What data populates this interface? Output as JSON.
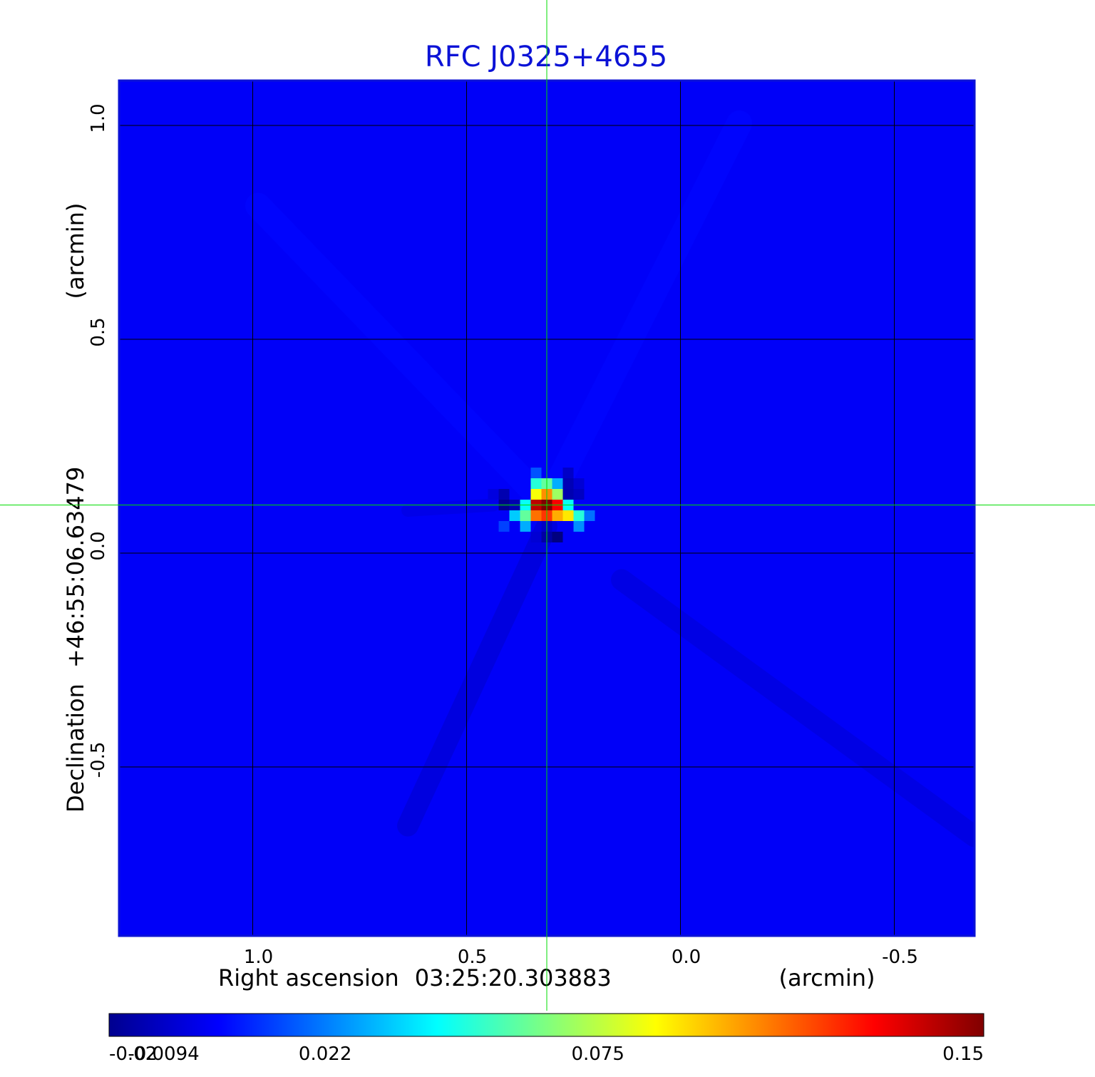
{
  "chart_data": {
    "type": "heatmap",
    "title": "RFC J0325+4655",
    "xlabel": "Right ascension",
    "xlabel_center": "03:25:20.303883",
    "xlabel_unit": "(arcmin)",
    "ylabel": "Declination",
    "ylabel_center": "+46:55:06.63479",
    "ylabel_unit": "(arcmin)",
    "x_ticks": [
      1.0,
      0.5,
      0.0,
      -0.5
    ],
    "x_tick_labels": [
      "1.0",
      "0.5",
      "0.0",
      "-0.5"
    ],
    "y_ticks": [
      1.0,
      0.5,
      0.0,
      -0.5
    ],
    "y_tick_labels": [
      "1.0",
      "0.5",
      "0.0",
      "-0.5"
    ],
    "xlim": [
      1.3125,
      -0.6875
    ],
    "ylim": [
      -0.895,
      1.105
    ],
    "grid": true,
    "crosshair": {
      "x": 0.3125,
      "y": 0.1125,
      "color": "#00dd00"
    },
    "colorbar": {
      "colormap": "jet",
      "min": -0.02,
      "max": 0.15,
      "ticks": [
        -0.02,
        -0.0094,
        0.022,
        0.075,
        0.15
      ],
      "tick_labels": [
        "-0.02",
        "-0.0094",
        "0.022",
        "0.075",
        "0.15"
      ]
    },
    "background_value": 0.0,
    "pixel_size_arcmin": 0.025,
    "features": [
      {
        "kind": "peak",
        "x": 0.3125,
        "y": 0.1125,
        "value": 0.15
      },
      {
        "kind": "pixels",
        "values_at": [
          {
            "x": 0.3375,
            "y": 0.1125,
            "value": 0.14
          },
          {
            "x": 0.2875,
            "y": 0.1125,
            "value": 0.13
          },
          {
            "x": 0.3125,
            "y": 0.0875,
            "value": 0.12
          },
          {
            "x": 0.3375,
            "y": 0.0875,
            "value": 0.11
          },
          {
            "x": 0.3125,
            "y": 0.1375,
            "value": 0.105
          },
          {
            "x": 0.2875,
            "y": 0.0875,
            "value": 0.1
          },
          {
            "x": 0.2625,
            "y": 0.0875,
            "value": 0.09
          },
          {
            "x": 0.3375,
            "y": 0.1375,
            "value": 0.085
          },
          {
            "x": 0.2875,
            "y": 0.1375,
            "value": 0.07
          },
          {
            "x": 0.3625,
            "y": 0.0875,
            "value": 0.06
          },
          {
            "x": 0.3125,
            "y": 0.1625,
            "value": 0.06
          },
          {
            "x": 0.3375,
            "y": 0.1625,
            "value": 0.05
          },
          {
            "x": 0.2375,
            "y": 0.0875,
            "value": 0.05
          },
          {
            "x": 0.2625,
            "y": 0.1125,
            "value": 0.045
          },
          {
            "x": 0.3625,
            "y": 0.1125,
            "value": 0.045
          },
          {
            "x": 0.3875,
            "y": 0.0875,
            "value": 0.035
          },
          {
            "x": 0.3625,
            "y": 0.0625,
            "value": 0.03
          },
          {
            "x": 0.2875,
            "y": 0.1625,
            "value": 0.03
          },
          {
            "x": 0.2375,
            "y": 0.0625,
            "value": 0.025
          },
          {
            "x": 0.2125,
            "y": 0.0875,
            "value": 0.02
          },
          {
            "x": 0.4125,
            "y": 0.0625,
            "value": 0.012
          },
          {
            "x": 0.3375,
            "y": 0.1875,
            "value": 0.015
          },
          {
            "x": 0.4125,
            "y": 0.1125,
            "value": -0.018
          },
          {
            "x": 0.3875,
            "y": 0.1125,
            "value": -0.012
          },
          {
            "x": 0.4125,
            "y": 0.1375,
            "value": -0.012
          },
          {
            "x": 0.2875,
            "y": 0.0375,
            "value": -0.02
          },
          {
            "x": 0.3125,
            "y": 0.0375,
            "value": -0.014
          },
          {
            "x": 0.3125,
            "y": 0.0625,
            "value": -0.008
          },
          {
            "x": 0.2625,
            "y": 0.1375,
            "value": -0.012
          },
          {
            "x": 0.2625,
            "y": 0.1625,
            "value": -0.011
          },
          {
            "x": 0.2375,
            "y": 0.1375,
            "value": -0.009
          },
          {
            "x": 0.2625,
            "y": 0.1875,
            "value": -0.008
          },
          {
            "x": 0.2375,
            "y": 0.1625,
            "value": -0.006
          },
          {
            "x": 0.4375,
            "y": 0.1375,
            "value": -0.004
          },
          {
            "x": 0.3375,
            "y": 0.0375,
            "value": -0.006
          }
        ]
      },
      {
        "kind": "streak",
        "from": [
          0.3125,
          0.0625
        ],
        "to": [
          0.6375,
          -0.6375
        ],
        "value": -0.005,
        "width_arcmin": 0.05
      },
      {
        "kind": "streak",
        "from": [
          0.1375,
          -0.0625
        ],
        "to": [
          -0.6875,
          -0.6625
        ],
        "value": -0.004,
        "width_arcmin": 0.05
      },
      {
        "kind": "streak",
        "from": [
          0.3125,
          0.1125
        ],
        "to": [
          0.9875,
          0.8125
        ],
        "value": 0.002,
        "width_arcmin": 0.06
      },
      {
        "kind": "streak",
        "from": [
          0.3125,
          0.1125
        ],
        "to": [
          -0.1375,
          1.005
        ],
        "value": 0.002,
        "width_arcmin": 0.06
      },
      {
        "kind": "streak",
        "from": [
          0.4375,
          0.1125
        ],
        "to": [
          0.6375,
          0.1
        ],
        "value": -0.003,
        "width_arcmin": 0.03
      }
    ]
  }
}
